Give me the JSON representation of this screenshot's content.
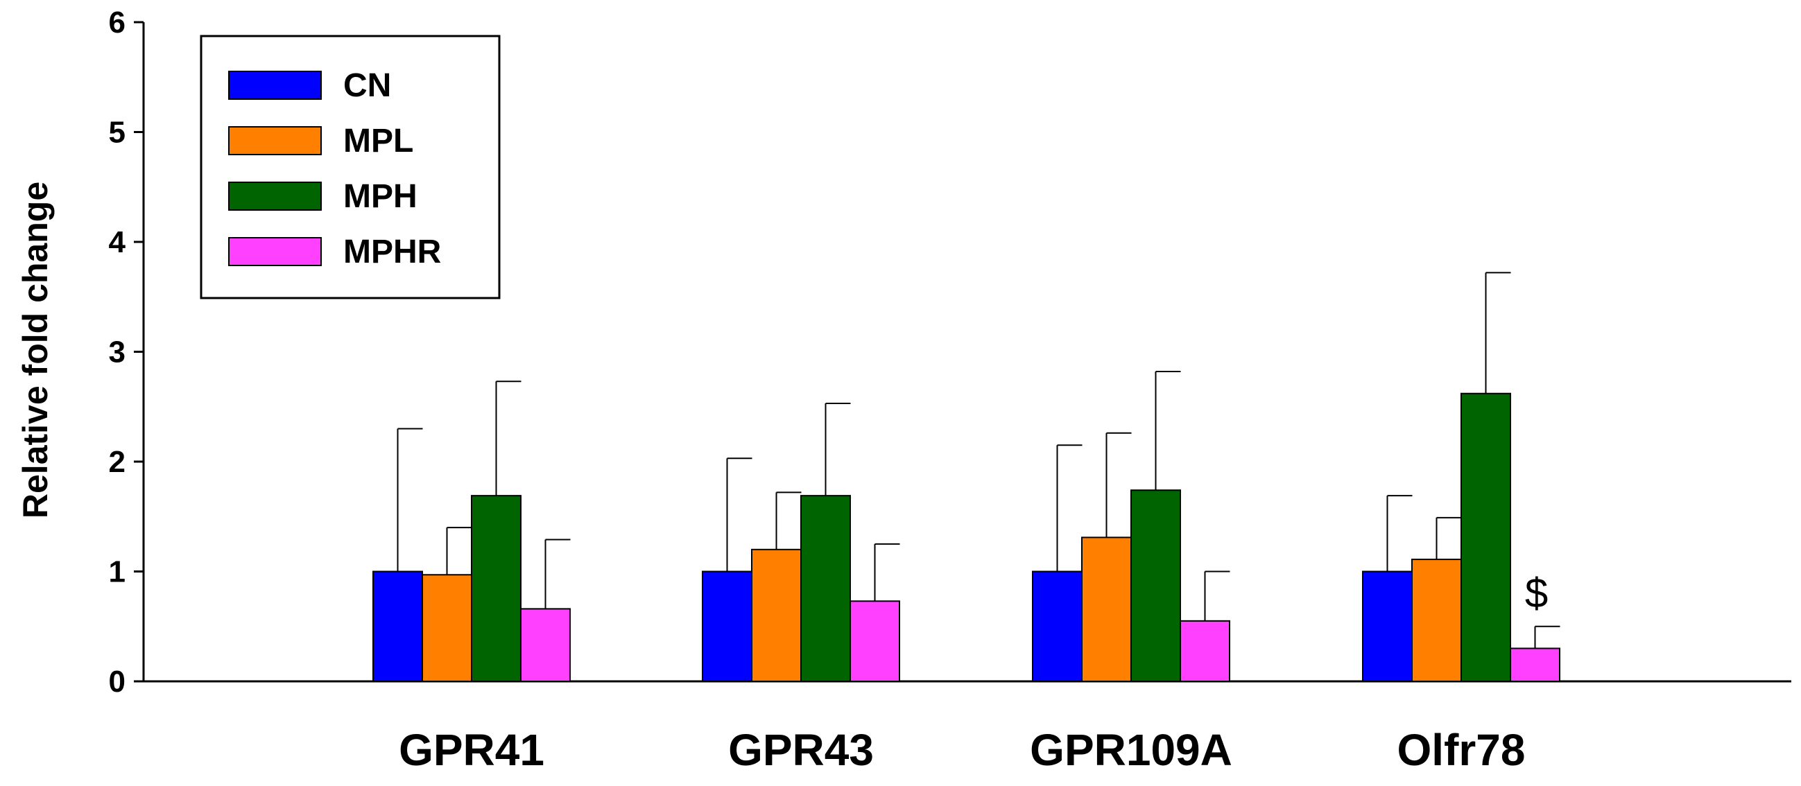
{
  "chart_data": {
    "type": "bar",
    "title": "",
    "xlabel": "",
    "ylabel": "Relative fold change",
    "ylim": [
      0,
      6
    ],
    "yticks": [
      "0",
      "1",
      "2",
      "3",
      "4",
      "5",
      "6"
    ],
    "categories": [
      "GPR41",
      "GPR43",
      "GPR109A",
      "Olfr78"
    ],
    "series": [
      {
        "name": "CN",
        "color": "#0000ff",
        "values": [
          1.0,
          1.0,
          1.0,
          1.0
        ],
        "errors": [
          1.3,
          1.03,
          1.15,
          0.69
        ]
      },
      {
        "name": "MPL",
        "color": "#ff8000",
        "values": [
          0.97,
          1.2,
          1.31,
          1.11
        ],
        "errors": [
          0.43,
          0.52,
          0.95,
          0.38
        ]
      },
      {
        "name": "MPH",
        "color": "#006400",
        "values": [
          1.69,
          1.69,
          1.74,
          2.62
        ],
        "errors": [
          1.04,
          0.84,
          1.08,
          1.1
        ]
      },
      {
        "name": "MPHR",
        "color": "#ff40ff",
        "values": [
          0.66,
          0.73,
          0.55,
          0.3
        ],
        "errors": [
          0.63,
          0.52,
          0.45,
          0.2
        ]
      }
    ],
    "legend_position": "top-left",
    "grid": false,
    "annotations": [
      {
        "text": "$",
        "category": "Olfr78",
        "series": "MPHR"
      }
    ]
  }
}
